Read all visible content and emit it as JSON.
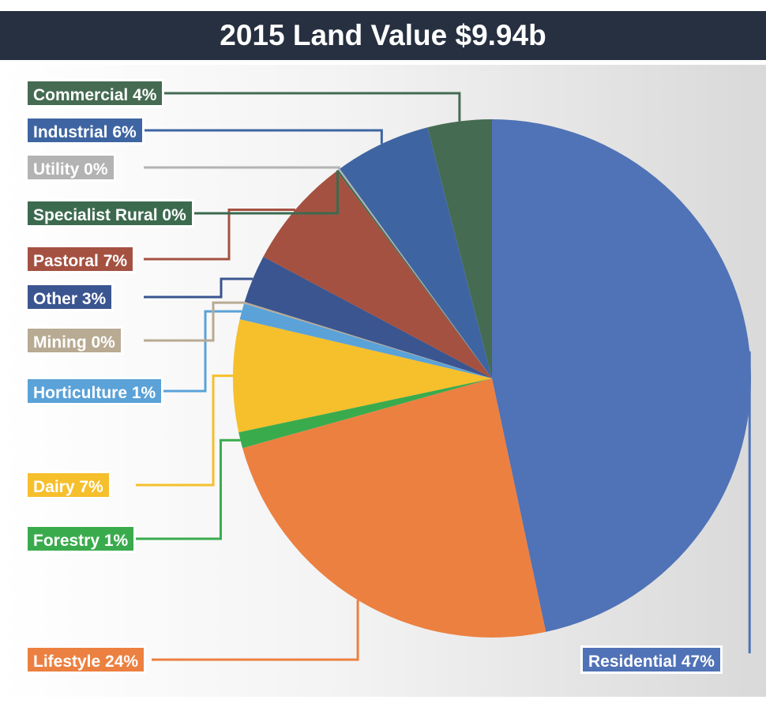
{
  "chart_data": {
    "type": "pie",
    "title": "2015 Land Value $9.94b",
    "slices": [
      {
        "label": "Residential 47%",
        "value": 47,
        "color": "#5072b6"
      },
      {
        "label": "Lifestyle 24%",
        "value": 24,
        "color": "#ec8040"
      },
      {
        "label": "Forestry 1%",
        "value": 1,
        "color": "#3aab4d"
      },
      {
        "label": "Dairy 7%",
        "value": 7,
        "color": "#f6bf2c"
      },
      {
        "label": "Horticulture 1%",
        "value": 1,
        "color": "#5aa2d8"
      },
      {
        "label": "Mining 0%",
        "value": 0,
        "color": "#b8aa93"
      },
      {
        "label": "Other 3%",
        "value": 3,
        "color": "#3a5590"
      },
      {
        "label": "Pastoral 7%",
        "value": 7,
        "color": "#a45141"
      },
      {
        "label": "Specialist Rural 0%",
        "value": 0,
        "color": "#3c6a4f"
      },
      {
        "label": "Utility 0%",
        "value": 0,
        "color": "#b3b3b3"
      },
      {
        "label": "Industrial 6%",
        "value": 6,
        "color": "#3e65a2"
      },
      {
        "label": "Commercial 4%",
        "value": 4,
        "color": "#456b52"
      }
    ]
  }
}
